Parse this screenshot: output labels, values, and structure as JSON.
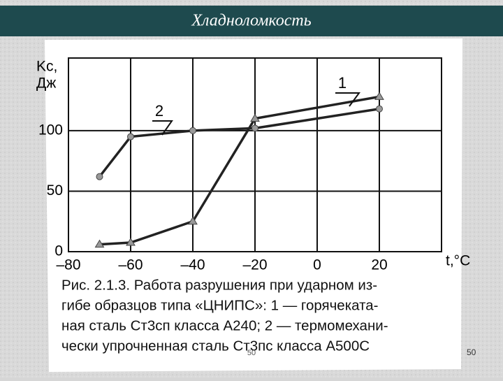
{
  "slide_title": "Хладноломкость",
  "chart_data": {
    "type": "line",
    "y_label_lines": [
      "Kс,",
      "Дж"
    ],
    "x_label": "t,°C",
    "x": [
      -70,
      -60,
      -40,
      -20,
      20
    ],
    "series": [
      {
        "name": "1",
        "color": "#222222",
        "marker": "triangle",
        "values": [
          6,
          7.5,
          25,
          110,
          128
        ]
      },
      {
        "name": "2",
        "color": "#222222",
        "marker": "circle",
        "values": [
          62,
          95,
          100,
          102,
          118
        ]
      }
    ],
    "xlim": [
      -80,
      40
    ],
    "xticks": [
      {
        "value": -80,
        "label": "–80"
      },
      {
        "value": -60,
        "label": "–60"
      },
      {
        "value": -40,
        "label": "–40"
      },
      {
        "value": -20,
        "label": "–20"
      },
      0,
      20
    ],
    "ylim": [
      0,
      160
    ],
    "yticks": [
      0,
      50,
      100
    ],
    "grid": true,
    "caption_lines": [
      "Рис. 2.1.3. Работа разрушения при ударном из-",
      "гибе образцов типа «ЦНИПС»: 1 — горячеката-",
      "ная сталь Ст3сп класса А240; 2 — термомехани-",
      "чески упрочненная сталь Ст3пс класса А500С"
    ]
  },
  "footer_number": "50",
  "slide_number": "50"
}
